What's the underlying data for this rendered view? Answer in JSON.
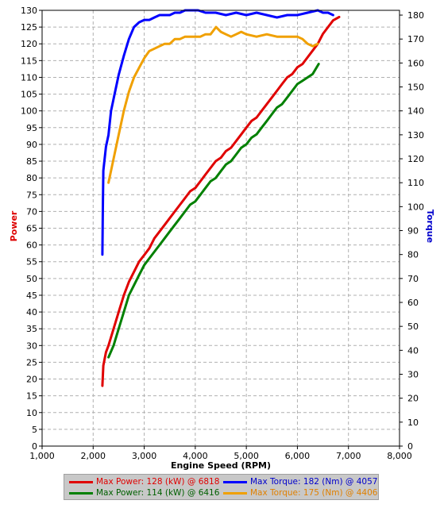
{
  "chart_data": {
    "type": "line",
    "title": "",
    "xlabel": "Engine Speed (RPM)",
    "ylabel_left": "Power",
    "ylabel_right": "Torque",
    "xlim": [
      1000,
      8000
    ],
    "ylim_left": [
      0,
      130
    ],
    "ylim_right": [
      0,
      182
    ],
    "x_ticks": [
      1000,
      2000,
      3000,
      4000,
      5000,
      6000,
      7000,
      8000
    ],
    "x_tick_labels": [
      "1,000",
      "2,000",
      "3,000",
      "4,000",
      "5,000",
      "6,000",
      "7,000",
      "8,000"
    ],
    "y_left_ticks": [
      0,
      5,
      10,
      15,
      20,
      25,
      30,
      35,
      40,
      45,
      50,
      55,
      60,
      65,
      70,
      75,
      80,
      85,
      90,
      95,
      100,
      105,
      110,
      115,
      120,
      125,
      130
    ],
    "y_right_ticks": [
      0,
      10,
      20,
      30,
      40,
      50,
      60,
      70,
      80,
      90,
      100,
      110,
      120,
      130,
      140,
      150,
      160,
      170,
      180
    ],
    "grid": true,
    "colors": {
      "power_axis_label": "#dd0000",
      "torque_axis_label": "#0000cc",
      "grid": "#b0b0b0"
    },
    "series": [
      {
        "name": "Max Power: 128 (kW) @ 6818",
        "color": "#e00000",
        "axis": "left",
        "x": [
          2180,
          2200,
          2250,
          2300,
          2400,
          2500,
          2600,
          2700,
          2800,
          2900,
          3000,
          3100,
          3200,
          3300,
          3400,
          3500,
          3600,
          3700,
          3800,
          3900,
          4000,
          4100,
          4200,
          4300,
          4400,
          4500,
          4600,
          4700,
          4800,
          4900,
          5000,
          5100,
          5200,
          5300,
          5400,
          5500,
          5600,
          5700,
          5800,
          5900,
          6000,
          6100,
          6200,
          6300,
          6400,
          6500,
          6600,
          6700,
          6818
        ],
        "values": [
          18,
          24,
          28,
          30,
          35,
          40,
          45,
          49,
          52,
          55,
          57,
          59,
          62,
          64,
          66,
          68,
          70,
          72,
          74,
          76,
          77,
          79,
          81,
          83,
          85,
          86,
          88,
          89,
          91,
          93,
          95,
          97,
          98,
          100,
          102,
          104,
          106,
          108,
          110,
          111,
          113,
          114,
          116,
          118,
          120,
          123,
          125,
          127,
          128
        ]
      },
      {
        "name": "Max Power: 114 (kW) @ 6416",
        "color": "#008000",
        "axis": "left",
        "x": [
          2300,
          2400,
          2500,
          2600,
          2700,
          2800,
          2900,
          3000,
          3100,
          3200,
          3300,
          3400,
          3500,
          3600,
          3700,
          3800,
          3900,
          4000,
          4100,
          4200,
          4300,
          4400,
          4500,
          4600,
          4700,
          4800,
          4900,
          5000,
          5100,
          5200,
          5300,
          5400,
          5500,
          5600,
          5700,
          5800,
          5900,
          6000,
          6100,
          6200,
          6300,
          6416
        ],
        "values": [
          26.5,
          30,
          35,
          40,
          45,
          48,
          51,
          54,
          56,
          58,
          60,
          62,
          64,
          66,
          68,
          70,
          72,
          73,
          75,
          77,
          79,
          80,
          82,
          84,
          85,
          87,
          89,
          90,
          92,
          93,
          95,
          97,
          99,
          101,
          102,
          104,
          106,
          108,
          109,
          110,
          111,
          114
        ]
      },
      {
        "name": "Max Torque: 182 (Nm) @ 4057",
        "color": "#0000ff",
        "axis": "right",
        "x": [
          2180,
          2190,
          2200,
          2250,
          2300,
          2350,
          2400,
          2500,
          2600,
          2700,
          2800,
          2900,
          3000,
          3100,
          3200,
          3300,
          3400,
          3500,
          3600,
          3700,
          3800,
          3900,
          4000,
          4057,
          4200,
          4400,
          4600,
          4800,
          5000,
          5200,
          5400,
          5600,
          5800,
          6000,
          6200,
          6400,
          6500,
          6600,
          6700
        ],
        "values": [
          80,
          100,
          115,
          125,
          130,
          140,
          145,
          155,
          163,
          170,
          175,
          177,
          178,
          178,
          179,
          180,
          180,
          180,
          181,
          181,
          182,
          182,
          182,
          182,
          181,
          181,
          180,
          181,
          180,
          181,
          180,
          179,
          180,
          180,
          181,
          182,
          181,
          181,
          180
        ]
      },
      {
        "name": "Max Torque: 175 (Nm) @ 4406",
        "color": "#f0a000",
        "axis": "right",
        "x": [
          2300,
          2400,
          2500,
          2600,
          2700,
          2800,
          2900,
          3000,
          3100,
          3200,
          3300,
          3400,
          3500,
          3600,
          3700,
          3800,
          3900,
          4000,
          4100,
          4200,
          4300,
          4406,
          4500,
          4600,
          4700,
          4800,
          4900,
          5000,
          5200,
          5400,
          5600,
          5800,
          6000,
          6100,
          6200,
          6300,
          6400
        ],
        "values": [
          110,
          120,
          130,
          140,
          148,
          154,
          158,
          162,
          165,
          166,
          167,
          168,
          168,
          170,
          170,
          171,
          171,
          171,
          171,
          172,
          172,
          175,
          173,
          172,
          171,
          172,
          173,
          172,
          171,
          172,
          171,
          171,
          171,
          170,
          168,
          167,
          168
        ]
      }
    ]
  }
}
